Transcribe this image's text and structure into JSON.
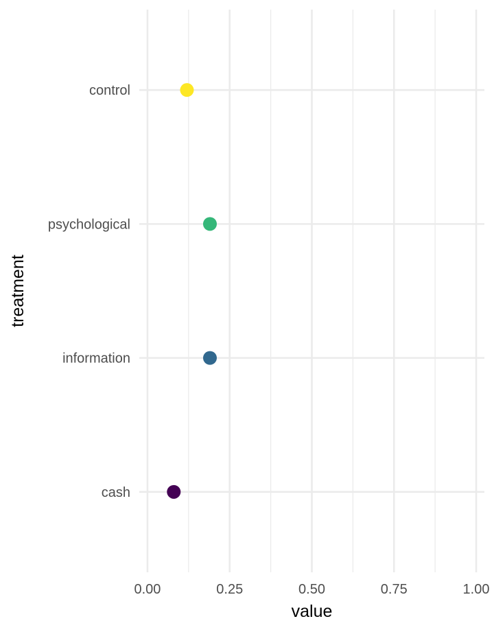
{
  "chart_data": {
    "type": "scatter",
    "title": "",
    "xlabel": "value",
    "ylabel": "treatment",
    "xlim": [
      -0.025,
      1.025
    ],
    "x_ticks": [
      0,
      0.25,
      0.5,
      0.75,
      1
    ],
    "x_tick_labels": [
      "0.00",
      "0.25",
      "0.50",
      "0.75",
      "1.00"
    ],
    "x_minor_ticks": [
      0.125,
      0.375,
      0.625,
      0.875
    ],
    "categories": [
      "control",
      "psychological",
      "information",
      "cash"
    ],
    "values": [
      0.12,
      0.19,
      0.19,
      0.08
    ],
    "colors": [
      "#FDE725",
      "#35B779",
      "#31688E",
      "#440154"
    ],
    "grid": true,
    "legend": "none"
  }
}
